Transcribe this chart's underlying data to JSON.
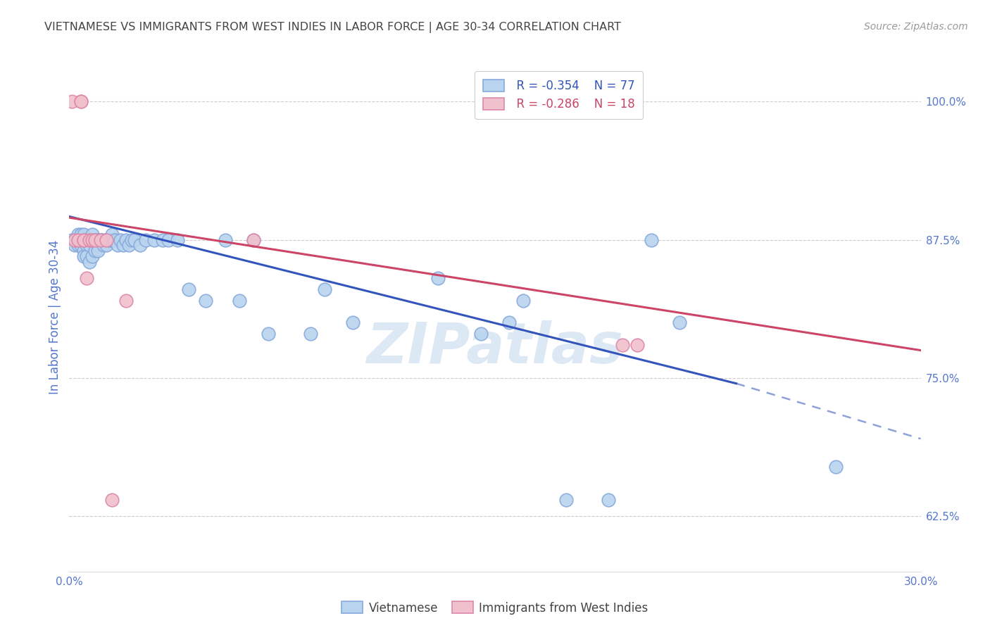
{
  "title": "VIETNAMESE VS IMMIGRANTS FROM WEST INDIES IN LABOR FORCE | AGE 30-34 CORRELATION CHART",
  "source": "Source: ZipAtlas.com",
  "ylabel": "In Labor Force | Age 30-34",
  "xlim": [
    0.0,
    0.3
  ],
  "ylim": [
    0.575,
    1.035
  ],
  "xticks": [
    0.0,
    0.05,
    0.1,
    0.15,
    0.2,
    0.25,
    0.3
  ],
  "xticklabels": [
    "0.0%",
    "",
    "",
    "",
    "",
    "",
    "30.0%"
  ],
  "yticks_right": [
    0.625,
    0.75,
    0.875,
    1.0
  ],
  "ytick_labels_right": [
    "62.5%",
    "75.0%",
    "87.5%",
    "100.0%"
  ],
  "title_color": "#444444",
  "source_color": "#999999",
  "axis_label_color": "#5577cc",
  "tick_color": "#5577cc",
  "grid_color": "#cccccc",
  "background_color": "#ffffff",
  "watermark_text": "ZIPatlas",
  "watermark_color": "#dde8f5",
  "legend_R_blue": "R = -0.354",
  "legend_N_blue": "N = 77",
  "legend_R_pink": "R = -0.286",
  "legend_N_pink": "N = 18",
  "blue_face": "#b8d4ee",
  "blue_edge": "#88aadd",
  "pink_face": "#f0c0cc",
  "pink_edge": "#dd88aa",
  "blue_line_color": "#3355bb",
  "pink_line_color": "#cc4466",
  "blue_scatter_x": [
    0.001,
    0.002,
    0.002,
    0.003,
    0.003,
    0.003,
    0.003,
    0.004,
    0.004,
    0.004,
    0.004,
    0.005,
    0.005,
    0.005,
    0.005,
    0.006,
    0.006,
    0.006,
    0.006,
    0.007,
    0.007,
    0.007,
    0.007,
    0.008,
    0.008,
    0.008,
    0.008,
    0.009,
    0.009,
    0.009,
    0.01,
    0.01,
    0.01,
    0.01,
    0.011,
    0.011,
    0.012,
    0.012,
    0.013,
    0.013,
    0.014,
    0.014,
    0.015,
    0.015,
    0.016,
    0.016,
    0.017,
    0.018,
    0.019,
    0.02,
    0.021,
    0.022,
    0.023,
    0.025,
    0.027,
    0.03,
    0.033,
    0.035,
    0.038,
    0.042,
    0.048,
    0.055,
    0.06,
    0.065,
    0.07,
    0.085,
    0.09,
    0.1,
    0.13,
    0.145,
    0.155,
    0.16,
    0.175,
    0.19,
    0.205,
    0.215,
    0.27
  ],
  "blue_scatter_y": [
    0.875,
    0.875,
    0.87,
    0.875,
    0.875,
    0.88,
    0.87,
    0.875,
    0.875,
    0.88,
    0.87,
    0.875,
    0.88,
    0.865,
    0.86,
    0.875,
    0.875,
    0.87,
    0.86,
    0.875,
    0.875,
    0.87,
    0.855,
    0.875,
    0.875,
    0.86,
    0.88,
    0.875,
    0.875,
    0.865,
    0.875,
    0.875,
    0.87,
    0.865,
    0.875,
    0.875,
    0.875,
    0.87,
    0.875,
    0.87,
    0.875,
    0.875,
    0.875,
    0.88,
    0.875,
    0.875,
    0.87,
    0.875,
    0.87,
    0.875,
    0.87,
    0.875,
    0.875,
    0.87,
    0.875,
    0.875,
    0.875,
    0.875,
    0.875,
    0.83,
    0.82,
    0.875,
    0.82,
    0.875,
    0.79,
    0.79,
    0.83,
    0.8,
    0.84,
    0.79,
    0.8,
    0.82,
    0.64,
    0.64,
    0.875,
    0.8,
    0.67
  ],
  "pink_scatter_x": [
    0.001,
    0.002,
    0.003,
    0.004,
    0.004,
    0.005,
    0.005,
    0.006,
    0.007,
    0.008,
    0.009,
    0.011,
    0.013,
    0.015,
    0.02,
    0.065,
    0.195,
    0.2
  ],
  "pink_scatter_y": [
    1.0,
    0.875,
    0.875,
    1.0,
    1.0,
    0.875,
    0.875,
    0.84,
    0.875,
    0.875,
    0.875,
    0.875,
    0.875,
    0.64,
    0.82,
    0.875,
    0.78,
    0.78
  ],
  "blue_line_x0": 0.0,
  "blue_line_x1_solid": 0.235,
  "blue_line_x1_dashed": 0.3,
  "blue_line_y0": 0.896,
  "blue_line_y1_solid": 0.745,
  "blue_line_y1_dashed": 0.695,
  "pink_line_x0": 0.0,
  "pink_line_x1": 0.3,
  "pink_line_y0": 0.895,
  "pink_line_y1": 0.775
}
